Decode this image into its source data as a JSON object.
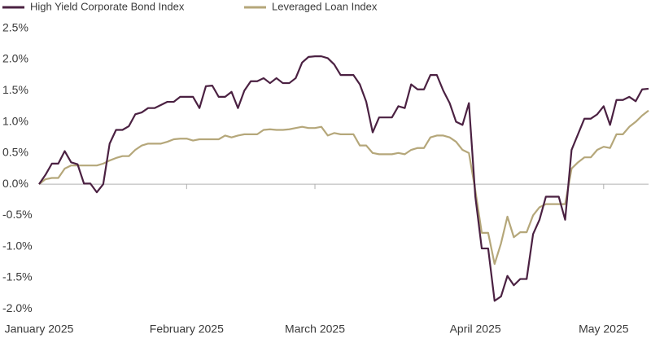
{
  "chart_data": {
    "type": "line",
    "categories": [
      "January 2025",
      null,
      null,
      null,
      null,
      null,
      null,
      null,
      null,
      null,
      null,
      null,
      null,
      null,
      null,
      null,
      null,
      null,
      null,
      null,
      null,
      null,
      null,
      "February 2025",
      null,
      null,
      null,
      null,
      null,
      null,
      null,
      null,
      null,
      null,
      null,
      null,
      null,
      null,
      null,
      null,
      null,
      null,
      null,
      "March 2025",
      null,
      null,
      null,
      null,
      null,
      null,
      null,
      null,
      null,
      null,
      null,
      null,
      null,
      null,
      null,
      null,
      null,
      null,
      null,
      null,
      null,
      null,
      null,
      null,
      "April 2025",
      null,
      null,
      null,
      null,
      null,
      null,
      null,
      null,
      null,
      null,
      null,
      null,
      null,
      null,
      null,
      null,
      null,
      null,
      null,
      "May 2025",
      null,
      null,
      null,
      null,
      null,
      null,
      null
    ],
    "series": [
      {
        "name": "High Yield Corporate Bond Index",
        "color": "#4b2142",
        "values": [
          0,
          0.15,
          0.33,
          0.33,
          0.53,
          0.35,
          0.32,
          0.01,
          0.01,
          -0.13,
          0.0,
          0.65,
          0.87,
          0.87,
          0.93,
          1.12,
          1.15,
          1.22,
          1.22,
          1.27,
          1.32,
          1.32,
          1.4,
          1.4,
          1.4,
          1.22,
          1.57,
          1.58,
          1.4,
          1.4,
          1.48,
          1.22,
          1.5,
          1.65,
          1.65,
          1.7,
          1.62,
          1.7,
          1.62,
          1.62,
          1.7,
          1.95,
          2.04,
          2.05,
          2.05,
          2.02,
          1.92,
          1.75,
          1.75,
          1.75,
          1.6,
          1.32,
          0.83,
          1.07,
          1.07,
          1.07,
          1.25,
          1.22,
          1.6,
          1.52,
          1.52,
          1.75,
          1.75,
          1.5,
          1.3,
          1.0,
          0.95,
          1.3,
          -0.2,
          -1.03,
          -1.03,
          -1.87,
          -1.8,
          -1.47,
          -1.62,
          -1.52,
          -1.52,
          -0.8,
          -0.57,
          -0.2,
          -0.2,
          -0.2,
          -0.57,
          0.55,
          0.8,
          1.05,
          1.05,
          1.12,
          1.25,
          0.95,
          1.35,
          1.35,
          1.4,
          1.33,
          1.52,
          1.53
        ]
      },
      {
        "name": "Leveraged Loan Index",
        "color": "#b5a77a",
        "values": [
          0,
          0.08,
          0.1,
          0.1,
          0.25,
          0.3,
          0.3,
          0.3,
          0.3,
          0.3,
          0.33,
          0.38,
          0.42,
          0.45,
          0.45,
          0.55,
          0.62,
          0.65,
          0.65,
          0.65,
          0.68,
          0.72,
          0.73,
          0.73,
          0.7,
          0.72,
          0.72,
          0.72,
          0.72,
          0.78,
          0.75,
          0.78,
          0.8,
          0.8,
          0.8,
          0.87,
          0.88,
          0.87,
          0.87,
          0.88,
          0.9,
          0.92,
          0.9,
          0.9,
          0.92,
          0.78,
          0.82,
          0.8,
          0.8,
          0.8,
          0.62,
          0.62,
          0.5,
          0.48,
          0.48,
          0.48,
          0.5,
          0.48,
          0.55,
          0.58,
          0.58,
          0.75,
          0.78,
          0.78,
          0.75,
          0.68,
          0.55,
          0.5,
          -0.1,
          -0.78,
          -0.78,
          -1.28,
          -0.95,
          -0.52,
          -0.85,
          -0.77,
          -0.77,
          -0.5,
          -0.37,
          -0.32,
          -0.32,
          -0.32,
          -0.32,
          0.25,
          0.35,
          0.43,
          0.43,
          0.55,
          0.6,
          0.58,
          0.8,
          0.8,
          0.92,
          1.0,
          1.1,
          1.18
        ]
      }
    ],
    "ylim": [
      -2.1,
      2.6
    ],
    "yticks": [
      {
        "value": 2.5,
        "label": "2.5%"
      },
      {
        "value": 2.0,
        "label": "2.0%"
      },
      {
        "value": 1.5,
        "label": "1.5%"
      },
      {
        "value": 1.0,
        "label": "1.0%"
      },
      {
        "value": 0.5,
        "label": "0.5%"
      },
      {
        "value": 0,
        "label": "0.0%"
      },
      {
        "value": -0.5,
        "label": "-0.5%"
      },
      {
        "value": -1.0,
        "label": "-1.0%"
      },
      {
        "value": -1.5,
        "label": "-1.5%"
      },
      {
        "value": -2.0,
        "label": "-2.0%"
      }
    ],
    "grid": false,
    "legend": "top-left"
  }
}
